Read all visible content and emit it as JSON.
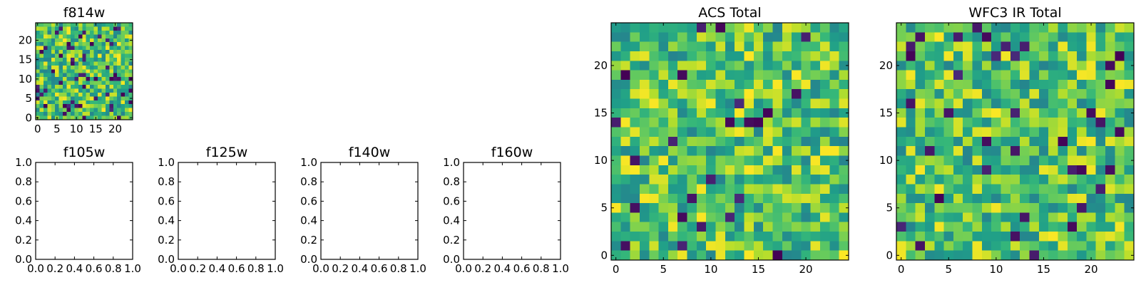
{
  "chart_data": [
    {
      "id": "f814w",
      "type": "heatmap",
      "title": "f814w",
      "grid_size": 25,
      "xlim": [
        -0.5,
        24.5
      ],
      "ylim": [
        -0.5,
        24.5
      ],
      "xticks": [
        0,
        5,
        10,
        15,
        20
      ],
      "xtick_labels": [
        "0",
        "5",
        "10",
        "15",
        "20"
      ],
      "yticks": [
        0,
        5,
        10,
        15,
        20
      ],
      "ytick_labels": [
        "0",
        "5",
        "10",
        "15",
        "20"
      ],
      "colormap": "viridis",
      "seed": 11,
      "low_prob": 0.08
    },
    {
      "id": "f105w",
      "type": "empty",
      "title": "f105w",
      "xlim": [
        0,
        1
      ],
      "ylim": [
        0,
        1
      ],
      "xticks": [
        0,
        0.2,
        0.4,
        0.6,
        0.8,
        1.0
      ],
      "xtick_labels": [
        "0.0",
        "0.2",
        "0.4",
        "0.6",
        "0.8",
        "1.0"
      ],
      "yticks": [
        0,
        0.2,
        0.4,
        0.6,
        0.8,
        1.0
      ],
      "ytick_labels": [
        "0.0",
        "0.2",
        "0.4",
        "0.6",
        "0.8",
        "1.0"
      ]
    },
    {
      "id": "f125w",
      "type": "empty",
      "title": "f125w",
      "xlim": [
        0,
        1
      ],
      "ylim": [
        0,
        1
      ],
      "xticks": [
        0,
        0.2,
        0.4,
        0.6,
        0.8,
        1.0
      ],
      "xtick_labels": [
        "0.0",
        "0.2",
        "0.4",
        "0.6",
        "0.8",
        "1.0"
      ],
      "yticks": [
        0,
        0.2,
        0.4,
        0.6,
        0.8,
        1.0
      ],
      "ytick_labels": [
        "0.0",
        "0.2",
        "0.4",
        "0.6",
        "0.8",
        "1.0"
      ]
    },
    {
      "id": "f140w",
      "type": "empty",
      "title": "f140w",
      "xlim": [
        0,
        1
      ],
      "ylim": [
        0,
        1
      ],
      "xticks": [
        0,
        0.2,
        0.4,
        0.6,
        0.8,
        1.0
      ],
      "xtick_labels": [
        "0.0",
        "0.2",
        "0.4",
        "0.6",
        "0.8",
        "1.0"
      ],
      "yticks": [
        0,
        0.2,
        0.4,
        0.6,
        0.8,
        1.0
      ],
      "ytick_labels": [
        "0.0",
        "0.2",
        "0.4",
        "0.6",
        "0.8",
        "1.0"
      ]
    },
    {
      "id": "f160w",
      "type": "empty",
      "title": "f160w",
      "xlim": [
        0,
        1
      ],
      "ylim": [
        0,
        1
      ],
      "xticks": [
        0,
        0.2,
        0.4,
        0.6,
        0.8,
        1.0
      ],
      "xtick_labels": [
        "0.0",
        "0.2",
        "0.4",
        "0.6",
        "0.8",
        "1.0"
      ],
      "yticks": [
        0,
        0.2,
        0.4,
        0.6,
        0.8,
        1.0
      ],
      "ytick_labels": [
        "0.0",
        "0.2",
        "0.4",
        "0.6",
        "0.8",
        "1.0"
      ]
    },
    {
      "id": "acs-total",
      "type": "heatmap",
      "title": "ACS Total",
      "grid_size": 25,
      "xlim": [
        -0.5,
        24.5
      ],
      "ylim": [
        -0.5,
        24.5
      ],
      "xticks": [
        0,
        5,
        10,
        15,
        20
      ],
      "xtick_labels": [
        "0",
        "5",
        "10",
        "15",
        "20"
      ],
      "yticks": [
        0,
        5,
        10,
        15,
        20
      ],
      "ytick_labels": [
        "0",
        "5",
        "10",
        "15",
        "20"
      ],
      "colormap": "viridis",
      "seed": 29,
      "low_prob": 0.05
    },
    {
      "id": "wfc3-ir-total",
      "type": "heatmap",
      "title": "WFC3 IR Total",
      "grid_size": 25,
      "xlim": [
        -0.5,
        24.5
      ],
      "ylim": [
        -0.5,
        24.5
      ],
      "xticks": [
        0,
        5,
        10,
        15,
        20
      ],
      "xtick_labels": [
        "0",
        "5",
        "10",
        "15",
        "20"
      ],
      "yticks": [
        0,
        5,
        10,
        15,
        20
      ],
      "ytick_labels": [
        "0",
        "5",
        "10",
        "15",
        "20"
      ],
      "colormap": "viridis",
      "seed": 47,
      "low_prob": 0.05
    }
  ]
}
